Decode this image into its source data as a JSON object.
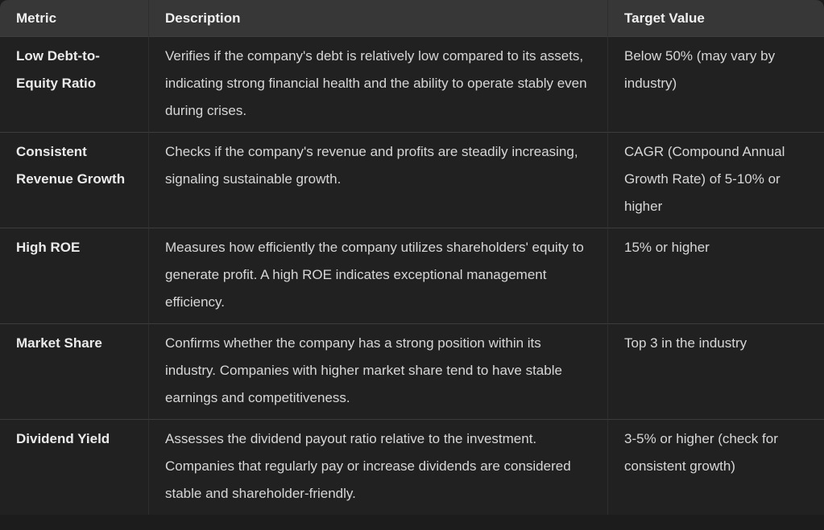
{
  "colors": {
    "page_bg": "#1c1c1c",
    "header_bg": "#373737",
    "body_bg": "#212121",
    "h_border": "#3d3d3d",
    "v_border": "#2e2e2e",
    "header_text": "#f0f0f0",
    "body_text": "#d7d7d7",
    "strong_text": "#ebebeb"
  },
  "table": {
    "columns": [
      {
        "key": "metric",
        "label": "Metric"
      },
      {
        "key": "description",
        "label": "Description"
      },
      {
        "key": "target",
        "label": "Target Value"
      }
    ],
    "rows": [
      {
        "metric": "Low Debt-to-Equity Ratio",
        "description": "Verifies if the company's debt is relatively low compared to its assets, indicating strong financial health and the ability to operate stably even during crises.",
        "target": "Below 50% (may vary by industry)"
      },
      {
        "metric": "Consistent Revenue Growth",
        "description": "Checks if the company's revenue and profits are steadily increasing, signaling sustainable growth.",
        "target": "CAGR (Compound Annual Growth Rate) of 5-10% or higher"
      },
      {
        "metric": "High ROE",
        "description": "Measures how efficiently the company utilizes shareholders' equity to generate profit. A high ROE indicates exceptional management efficiency.",
        "target": "15% or higher"
      },
      {
        "metric": "Market Share",
        "description": "Confirms whether the company has a strong position within its industry. Companies with higher market share tend to have stable earnings and competitiveness.",
        "target": "Top 3 in the industry"
      },
      {
        "metric": "Dividend Yield",
        "description": "Assesses the dividend payout ratio relative to the investment. Companies that regularly pay or increase dividends are considered stable and shareholder-friendly.",
        "target": "3-5% or higher (check for consistent growth)"
      }
    ]
  }
}
